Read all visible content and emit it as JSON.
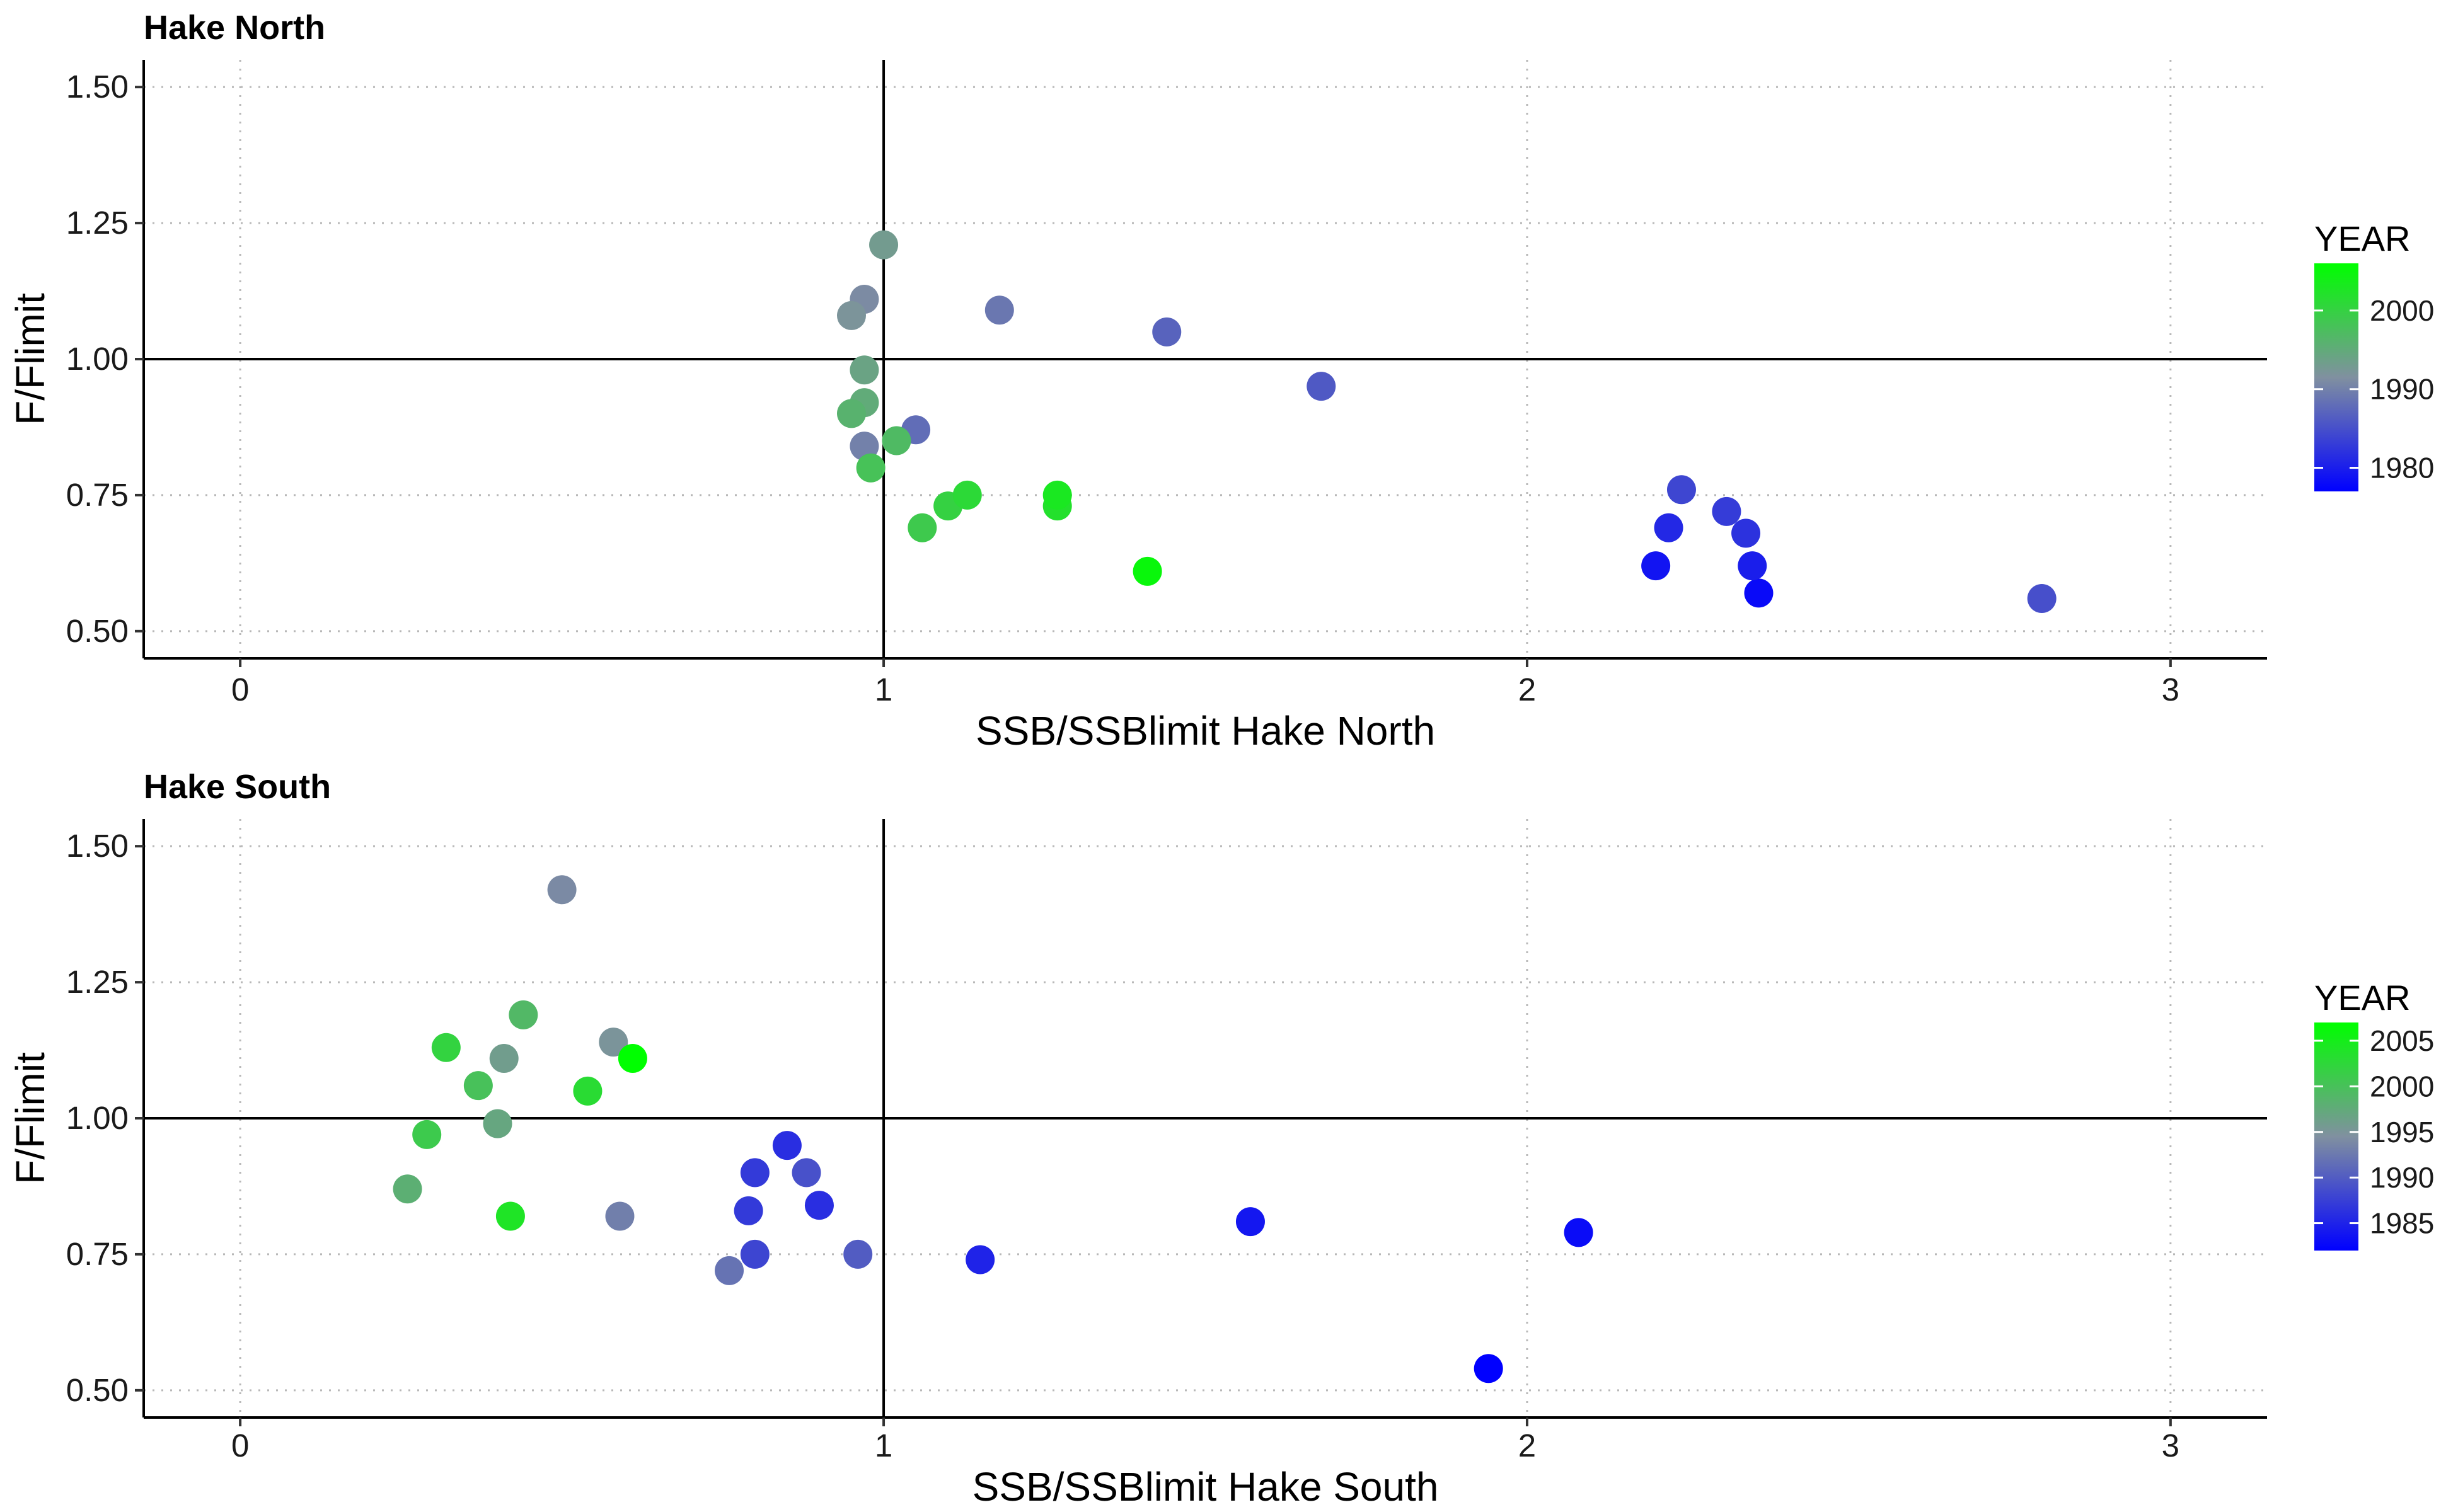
{
  "chart_data": [
    {
      "type": "scatter",
      "title": "Hake North",
      "xlabel": "SSB/SSBlimit Hake North",
      "ylabel": "F/Flimit",
      "xlim": [
        -0.15,
        3.15
      ],
      "ylim": [
        0.45,
        1.55
      ],
      "x_ticks": [
        0,
        1,
        2,
        3
      ],
      "x_tick_labels": [
        "0",
        "1",
        "2",
        "3"
      ],
      "y_ticks": [
        0.5,
        0.75,
        1.0,
        1.25,
        1.5
      ],
      "y_tick_labels": [
        "0.50",
        "0.75",
        "1.00",
        "1.25",
        "1.50"
      ],
      "reference_lines": {
        "x": 1,
        "y": 1
      },
      "grid": "dotted major",
      "legend": {
        "title": "YEAR",
        "placement": "right",
        "range": [
          1977,
          2006
        ],
        "color_low": "#0000ff",
        "color_mid": "#8090a0",
        "color_high": "#00ff00",
        "breaks": [
          1980,
          1990,
          2000
        ],
        "break_labels": [
          "1980",
          "1990",
          "2000"
        ]
      },
      "points": [
        {
          "x": 2.36,
          "y": 0.57,
          "year": 1978
        },
        {
          "x": 2.2,
          "y": 0.62,
          "year": 1979
        },
        {
          "x": 2.35,
          "y": 0.62,
          "year": 1980
        },
        {
          "x": 2.22,
          "y": 0.69,
          "year": 1981
        },
        {
          "x": 2.34,
          "y": 0.68,
          "year": 1982
        },
        {
          "x": 2.31,
          "y": 0.72,
          "year": 1983
        },
        {
          "x": 2.24,
          "y": 0.76,
          "year": 1984
        },
        {
          "x": 2.8,
          "y": 0.56,
          "year": 1985
        },
        {
          "x": 1.68,
          "y": 0.95,
          "year": 1986
        },
        {
          "x": 1.44,
          "y": 1.05,
          "year": 1987
        },
        {
          "x": 1.05,
          "y": 0.87,
          "year": 1988
        },
        {
          "x": 1.18,
          "y": 1.09,
          "year": 1989
        },
        {
          "x": 0.97,
          "y": 0.84,
          "year": 1990
        },
        {
          "x": 0.97,
          "y": 1.11,
          "year": 1991
        },
        {
          "x": 0.95,
          "y": 1.08,
          "year": 1992
        },
        {
          "x": 1.0,
          "y": 1.21,
          "year": 1993
        },
        {
          "x": 0.97,
          "y": 0.98,
          "year": 1994
        },
        {
          "x": 0.97,
          "y": 0.92,
          "year": 1995
        },
        {
          "x": 0.95,
          "y": 0.9,
          "year": 1996
        },
        {
          "x": 1.02,
          "y": 0.85,
          "year": 1997
        },
        {
          "x": 0.98,
          "y": 0.8,
          "year": 1998
        },
        {
          "x": 1.06,
          "y": 0.69,
          "year": 1999
        },
        {
          "x": 1.1,
          "y": 0.73,
          "year": 2000
        },
        {
          "x": 1.13,
          "y": 0.75,
          "year": 2001
        },
        {
          "x": 1.27,
          "y": 0.73,
          "year": 2002
        },
        {
          "x": 1.27,
          "y": 0.75,
          "year": 2003
        },
        {
          "x": 1.41,
          "y": 0.61,
          "year": 2005
        }
      ]
    },
    {
      "type": "scatter",
      "title": "Hake South",
      "xlabel": "SSB/SSBlimit Hake South",
      "ylabel": "F/Flimit",
      "xlim": [
        -0.15,
        3.15
      ],
      "ylim": [
        0.45,
        1.55
      ],
      "x_ticks": [
        0,
        1,
        2,
        3
      ],
      "x_tick_labels": [
        "0",
        "1",
        "2",
        "3"
      ],
      "y_ticks": [
        0.5,
        0.75,
        1.0,
        1.25,
        1.5
      ],
      "y_tick_labels": [
        "0.50",
        "0.75",
        "1.00",
        "1.25",
        "1.50"
      ],
      "reference_lines": {
        "x": 1,
        "y": 1
      },
      "grid": "dotted major",
      "legend": {
        "title": "YEAR",
        "placement": "right",
        "range": [
          1982,
          2007
        ],
        "color_low": "#0000ff",
        "color_mid": "#8090a0",
        "color_high": "#00ff00",
        "breaks": [
          1985,
          1990,
          1995,
          2000,
          2005
        ],
        "break_labels": [
          "1985",
          "1990",
          "1995",
          "2000",
          "2005"
        ]
      },
      "points": [
        {
          "x": 1.94,
          "y": 0.54,
          "year": 1982
        },
        {
          "x": 2.08,
          "y": 0.79,
          "year": 1983
        },
        {
          "x": 1.57,
          "y": 0.81,
          "year": 1984
        },
        {
          "x": 1.15,
          "y": 0.74,
          "year": 1985
        },
        {
          "x": 0.9,
          "y": 0.84,
          "year": 1986
        },
        {
          "x": 0.85,
          "y": 0.95,
          "year": 1986
        },
        {
          "x": 0.8,
          "y": 0.9,
          "year": 1987
        },
        {
          "x": 0.79,
          "y": 0.83,
          "year": 1987
        },
        {
          "x": 0.8,
          "y": 0.75,
          "year": 1988
        },
        {
          "x": 0.88,
          "y": 0.9,
          "year": 1989
        },
        {
          "x": 0.96,
          "y": 0.75,
          "year": 1990
        },
        {
          "x": 0.76,
          "y": 0.72,
          "year": 1992
        },
        {
          "x": 0.59,
          "y": 0.82,
          "year": 1993
        },
        {
          "x": 0.5,
          "y": 1.42,
          "year": 1994
        },
        {
          "x": 0.58,
          "y": 1.14,
          "year": 1995
        },
        {
          "x": 0.41,
          "y": 1.11,
          "year": 1996
        },
        {
          "x": 0.4,
          "y": 0.99,
          "year": 1997
        },
        {
          "x": 0.26,
          "y": 0.87,
          "year": 1998
        },
        {
          "x": 0.44,
          "y": 1.19,
          "year": 1999
        },
        {
          "x": 0.37,
          "y": 1.06,
          "year": 2000
        },
        {
          "x": 0.29,
          "y": 0.97,
          "year": 2001
        },
        {
          "x": 0.32,
          "y": 1.13,
          "year": 2002
        },
        {
          "x": 0.54,
          "y": 1.05,
          "year": 2003
        },
        {
          "x": 0.42,
          "y": 0.82,
          "year": 2004
        },
        {
          "x": 0.61,
          "y": 1.11,
          "year": 2007
        }
      ]
    }
  ]
}
